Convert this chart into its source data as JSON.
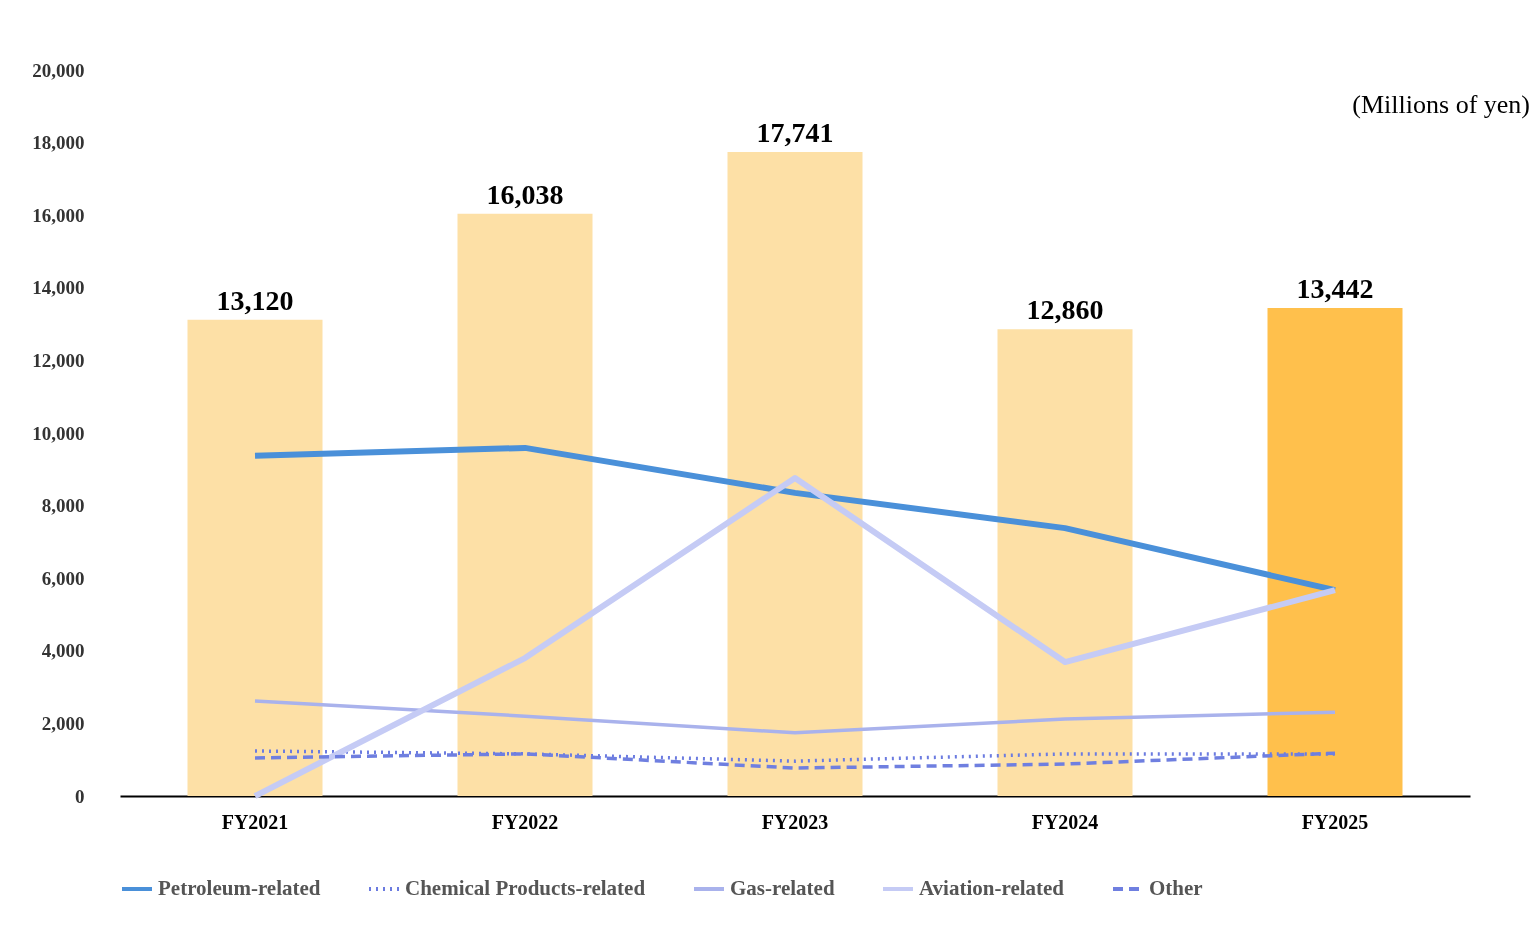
{
  "chart_data": {
    "type": "bar",
    "categories": [
      "FY2021",
      "FY2022",
      "FY2023",
      "FY2024",
      "FY2025"
    ],
    "series": [
      {
        "colors": [
          "#fde0a6",
          "#fde0a6",
          "#fde0a6",
          "#fde0a6",
          "#ffc04c"
        ],
        "values": [
          13120,
          16038,
          17741,
          12860,
          13442
        ],
        "value_labels": [
          "13,120",
          "16,038",
          "17,741",
          "12,860",
          "13,442"
        ]
      },
      {
        "type": "line",
        "name": "Petroleum-related",
        "color": "#4a90d9",
        "line_style": "solid",
        "values": [
          9370,
          9590,
          8350,
          7380,
          5670
        ]
      },
      {
        "type": "line",
        "name": "Chemical Products-related",
        "color": "#6b7be0",
        "line_style": "dotted",
        "values": [
          1240,
          1160,
          960,
          1160,
          1160
        ]
      },
      {
        "type": "line",
        "name": "Gas-related",
        "color": "#a9b2ec",
        "line_style": "solid",
        "values": [
          2620,
          2200,
          1740,
          2120,
          2310
        ]
      },
      {
        "type": "line",
        "name": "Aviation-related",
        "color": "#c5cbf5",
        "line_style": "solid",
        "values": [
          0,
          3800,
          8760,
          3690,
          5670
        ]
      },
      {
        "type": "line",
        "name": "Other",
        "color": "#6f7fe0",
        "line_style": "dashed",
        "values": [
          1050,
          1160,
          770,
          880,
          1180
        ]
      }
    ],
    "ylim": [
      0,
      20000
    ],
    "yticks": [
      0,
      {
        "value": 2000,
        "label": "2,000"
      },
      {
        "value": 4000,
        "label": "4,000"
      },
      {
        "value": 6000,
        "label": "6,000"
      },
      {
        "value": 8000,
        "label": "8,000"
      },
      {
        "value": 10000,
        "label": "10,000"
      },
      {
        "value": 12000,
        "label": "12,000"
      },
      {
        "value": 14000,
        "label": "14,000"
      },
      {
        "value": 16000,
        "label": "16,000"
      },
      {
        "value": 18000,
        "label": "18,000"
      },
      {
        "value": 20000,
        "label": "20,000"
      }
    ],
    "grid": false,
    "legend": "bottom",
    "annotations": [
      "(Millions of yen)"
    ]
  }
}
